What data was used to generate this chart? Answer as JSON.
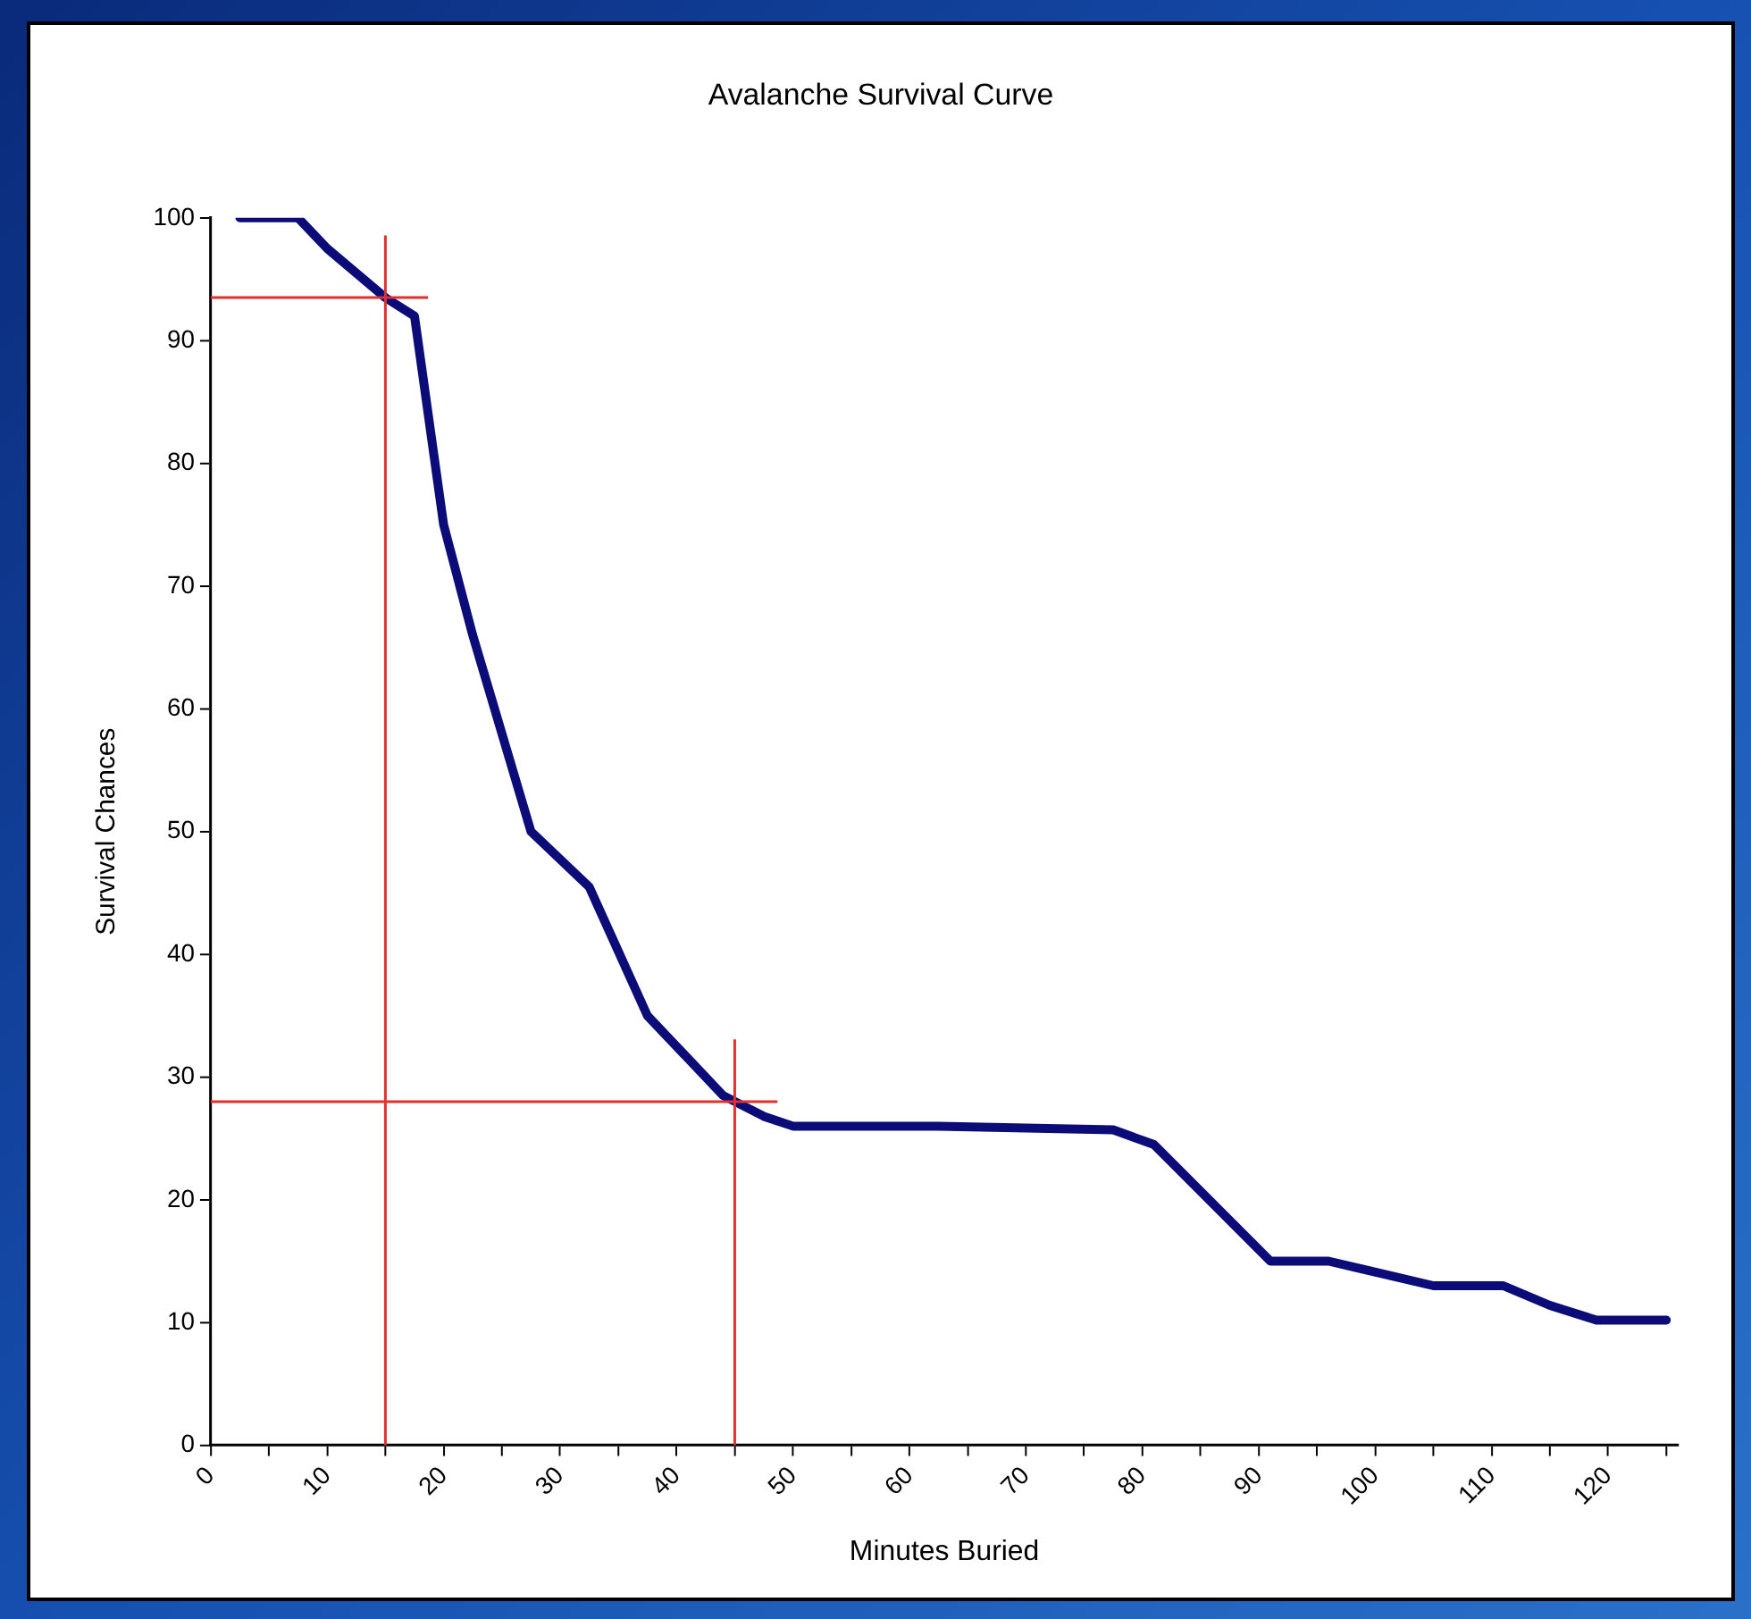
{
  "chart_data": {
    "type": "line",
    "title": "Avalanche Survival Curve",
    "xlabel": "Minutes Buried",
    "ylabel": "Survival Chances",
    "x": [
      2.5,
      7.5,
      10,
      15,
      17.5,
      20,
      22.5,
      27.5,
      32.5,
      37.5,
      44,
      47.5,
      50,
      62.5,
      77.5,
      81,
      91,
      96,
      105,
      111,
      115,
      119,
      125
    ],
    "series": [
      {
        "color": "#0c0c78",
        "values": [
          100,
          100,
          97.5,
          93.5,
          92,
          75,
          66,
          50,
          45.5,
          35,
          28.5,
          26.8,
          26,
          26,
          25.7,
          24.5,
          15,
          15,
          13,
          13,
          11.4,
          10.2,
          10.2
        ]
      }
    ],
    "xlim": [
      0,
      126
    ],
    "xticks": [
      0,
      {
        "value": 5,
        "label": null
      },
      10,
      {
        "value": 15,
        "label": null
      },
      20,
      {
        "value": 25,
        "label": null
      },
      30,
      {
        "value": 35,
        "label": null
      },
      40,
      {
        "value": 45,
        "label": null
      },
      50,
      {
        "value": 55,
        "label": null
      },
      60,
      {
        "value": 65,
        "label": null
      },
      70,
      {
        "value": 75,
        "label": null
      },
      80,
      {
        "value": 85,
        "label": null
      },
      90,
      {
        "value": 95,
        "label": null
      },
      100,
      {
        "value": 105,
        "label": null
      },
      110,
      {
        "value": 115,
        "label": null
      },
      120,
      {
        "value": 125,
        "label": null
      }
    ],
    "ylim": [
      0,
      100
    ],
    "yticks": [
      0,
      10,
      20,
      30,
      40,
      50,
      60,
      70,
      80,
      90,
      100
    ],
    "ref_lines": [
      {
        "axis": "x",
        "value": 15,
        "color": "#e03030"
      },
      {
        "axis": "y",
        "value": 93.5,
        "color": "#e03030"
      },
      {
        "axis": "x",
        "value": 45,
        "color": "#e03030"
      },
      {
        "axis": "y",
        "value": 28,
        "color": "#e03030"
      }
    ],
    "grid": false,
    "legend": false,
    "marker": "none",
    "line_style": "solid"
  }
}
